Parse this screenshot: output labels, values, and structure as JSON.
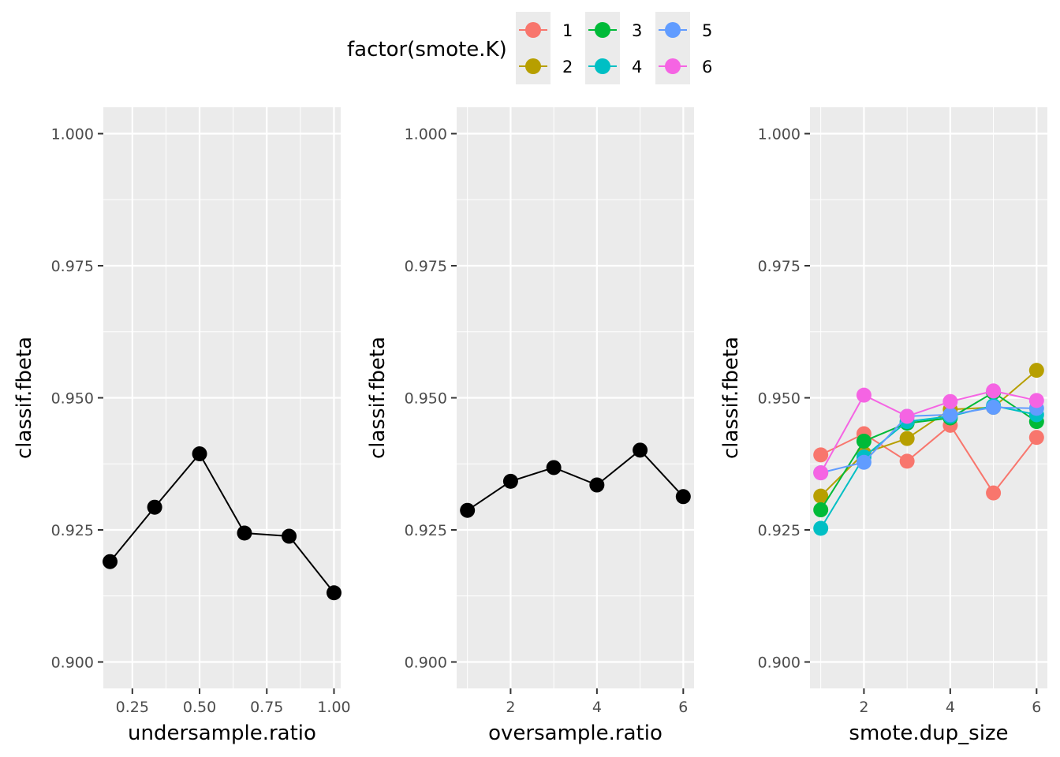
{
  "legend": {
    "title": "factor(smote.K)",
    "items": [
      {
        "label": "1",
        "color": "#F8766D"
      },
      {
        "label": "2",
        "color": "#B79F00"
      },
      {
        "label": "3",
        "color": "#00BA38"
      },
      {
        "label": "4",
        "color": "#00BFC4"
      },
      {
        "label": "5",
        "color": "#619CFF"
      },
      {
        "label": "6",
        "color": "#F564E3"
      }
    ]
  },
  "chart_data": [
    {
      "type": "line",
      "xlabel": "undersample.ratio",
      "ylabel": "classif.fbeta",
      "ylim": [
        0.895,
        1.005
      ],
      "xlim": [
        0.142,
        1.025
      ],
      "xticks": [
        0.25,
        0.5,
        0.75,
        1.0
      ],
      "xtick_labels": [
        "0.25",
        "0.50",
        "0.75",
        "1.00"
      ],
      "yticks": [
        0.9,
        0.925,
        0.95,
        0.975,
        1.0
      ],
      "ytick_labels": [
        "0.900",
        "0.925",
        "0.950",
        "0.975",
        "1.000"
      ],
      "series": [
        {
          "color": "#000000",
          "x": [
            0.167,
            0.333,
            0.5,
            0.667,
            0.833,
            1.0
          ],
          "y": [
            0.919,
            0.9293,
            0.9394,
            0.9244,
            0.9238,
            0.9131
          ]
        }
      ]
    },
    {
      "type": "line",
      "xlabel": "oversample.ratio",
      "ylabel": "classif.fbeta",
      "ylim": [
        0.895,
        1.005
      ],
      "xlim": [
        0.75,
        6.25
      ],
      "xticks": [
        2,
        4,
        6
      ],
      "xtick_labels": [
        "2",
        "4",
        "6"
      ],
      "yticks": [
        0.9,
        0.925,
        0.95,
        0.975,
        1.0
      ],
      "ytick_labels": [
        "0.900",
        "0.925",
        "0.950",
        "0.975",
        "1.000"
      ],
      "series": [
        {
          "color": "#000000",
          "x": [
            1,
            2,
            3,
            4,
            5,
            6
          ],
          "y": [
            0.9287,
            0.9342,
            0.9368,
            0.9335,
            0.9401,
            0.9313
          ]
        }
      ]
    },
    {
      "type": "line",
      "xlabel": "smote.dup_size",
      "ylabel": "classif.fbeta",
      "ylim": [
        0.895,
        1.005
      ],
      "xlim": [
        0.75,
        6.25
      ],
      "xticks": [
        2,
        4,
        6
      ],
      "xtick_labels": [
        "2",
        "4",
        "6"
      ],
      "yticks": [
        0.9,
        0.925,
        0.95,
        0.975,
        1.0
      ],
      "ytick_labels": [
        "0.900",
        "0.925",
        "0.950",
        "0.975",
        "1.000"
      ],
      "series": [
        {
          "name": "1",
          "color": "#F8766D",
          "x": [
            1,
            2,
            3,
            4,
            5,
            6
          ],
          "y": [
            0.9392,
            0.9432,
            0.938,
            0.9448,
            0.932,
            0.9425
          ]
        },
        {
          "name": "2",
          "color": "#B79F00",
          "x": [
            1,
            2,
            3,
            4,
            5,
            6
          ],
          "y": [
            0.9314,
            0.9395,
            0.9423,
            0.9478,
            0.9482,
            0.9552
          ]
        },
        {
          "name": "3",
          "color": "#00BA38",
          "x": [
            1,
            2,
            3,
            4,
            5,
            6
          ],
          "y": [
            0.9288,
            0.9418,
            0.9452,
            0.9462,
            0.951,
            0.9455
          ]
        },
        {
          "name": "4",
          "color": "#00BFC4",
          "x": [
            1,
            2,
            3,
            4,
            5,
            6
          ],
          "y": [
            0.9253,
            0.9388,
            0.9455,
            0.9465,
            0.9485,
            0.9468
          ]
        },
        {
          "name": "5",
          "color": "#619CFF",
          "x": [
            1,
            2,
            3,
            4,
            5,
            6
          ],
          "y": [
            0.9358,
            0.9378,
            0.9465,
            0.9468,
            0.9482,
            0.948
          ]
        },
        {
          "name": "6",
          "color": "#F564E3",
          "x": [
            1,
            2,
            3,
            4,
            5,
            6
          ],
          "y": [
            0.9358,
            0.9505,
            0.9465,
            0.9493,
            0.9513,
            0.9495
          ]
        }
      ]
    }
  ]
}
